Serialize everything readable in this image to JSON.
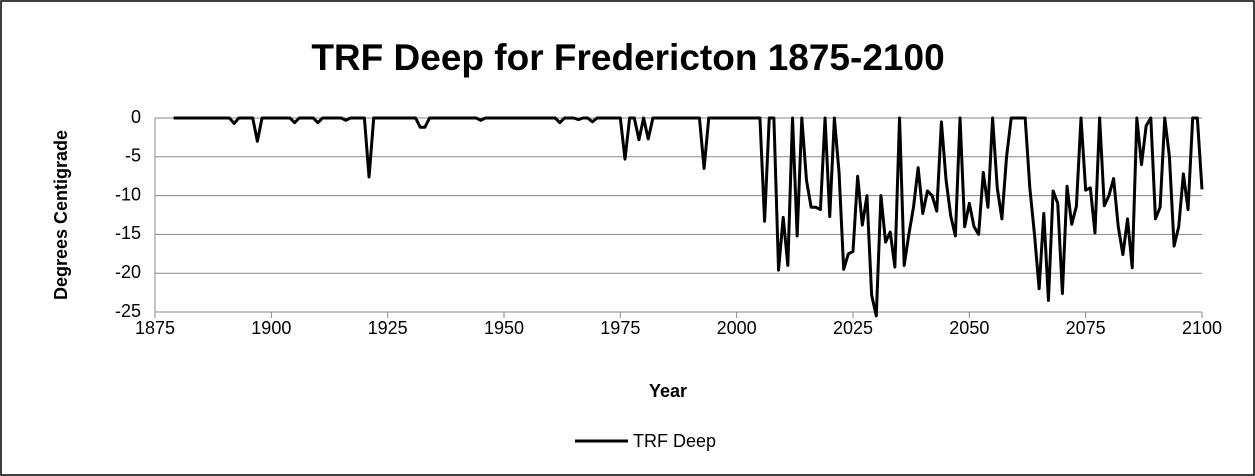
{
  "chart_data": {
    "type": "line",
    "title": "TRF Deep for Fredericton 1875-2100",
    "xlabel": "Year",
    "ylabel": "Degrees Centigrade",
    "xlim": [
      1875,
      2100
    ],
    "xticks": [
      1875,
      1900,
      1925,
      1950,
      1975,
      2000,
      2025,
      2050,
      2075,
      2100
    ],
    "ylim": [
      -25,
      0
    ],
    "yticks": [
      0,
      -5,
      -10,
      -15,
      -20,
      -25
    ],
    "grid": true,
    "legend": "bottom",
    "x": [
      1879,
      1880,
      1881,
      1882,
      1883,
      1884,
      1885,
      1886,
      1887,
      1888,
      1889,
      1890,
      1891,
      1892,
      1893,
      1894,
      1895,
      1896,
      1897,
      1898,
      1899,
      1900,
      1901,
      1902,
      1903,
      1904,
      1905,
      1906,
      1907,
      1908,
      1909,
      1910,
      1911,
      1912,
      1913,
      1914,
      1915,
      1916,
      1917,
      1918,
      1919,
      1920,
      1921,
      1922,
      1923,
      1924,
      1925,
      1926,
      1927,
      1928,
      1929,
      1930,
      1931,
      1932,
      1933,
      1934,
      1935,
      1936,
      1937,
      1938,
      1939,
      1940,
      1941,
      1942,
      1943,
      1944,
      1945,
      1946,
      1947,
      1948,
      1949,
      1950,
      1951,
      1952,
      1953,
      1954,
      1955,
      1956,
      1957,
      1958,
      1959,
      1960,
      1961,
      1962,
      1963,
      1964,
      1965,
      1966,
      1967,
      1968,
      1969,
      1970,
      1971,
      1972,
      1973,
      1974,
      1975,
      1976,
      1977,
      1978,
      1979,
      1980,
      1981,
      1982,
      1983,
      1984,
      1985,
      1986,
      1987,
      1988,
      1989,
      1990,
      1991,
      1992,
      1993,
      1994,
      1995,
      1996,
      1997,
      1998,
      1999,
      2000,
      2001,
      2002,
      2003,
      2004,
      2005,
      2006,
      2007,
      2008,
      2009,
      2010,
      2011,
      2012,
      2013,
      2014,
      2015,
      2016,
      2017,
      2018,
      2019,
      2020,
      2021,
      2022,
      2023,
      2024,
      2025,
      2026,
      2027,
      2028,
      2029,
      2030,
      2031,
      2032,
      2033,
      2034,
      2035,
      2036,
      2037,
      2038,
      2039,
      2040,
      2041,
      2042,
      2043,
      2044,
      2045,
      2046,
      2047,
      2048,
      2049,
      2050,
      2051,
      2052,
      2053,
      2054,
      2055,
      2056,
      2057,
      2058,
      2059,
      2060,
      2061,
      2062,
      2063,
      2064,
      2065,
      2066,
      2067,
      2068,
      2069,
      2070,
      2071,
      2072,
      2073,
      2074,
      2075,
      2076,
      2077,
      2078,
      2079,
      2080,
      2081,
      2082,
      2083,
      2084,
      2085,
      2086,
      2087,
      2088,
      2089,
      2090,
      2091,
      2092,
      2093,
      2094,
      2095,
      2096,
      2097,
      2098,
      2099,
      2100
    ],
    "series": [
      {
        "name": "TRF Deep",
        "color": "#000000",
        "values": [
          0,
          0,
          0,
          0,
          0,
          0,
          0,
          0,
          0,
          0,
          0,
          0,
          0,
          -0.7,
          0,
          0,
          0,
          0,
          -3,
          0,
          0,
          0,
          0,
          0,
          0,
          0,
          -0.6,
          0,
          0,
          0,
          0,
          -0.6,
          0,
          0,
          0,
          0,
          0,
          -0.3,
          0,
          0,
          0,
          0,
          -7.6,
          0,
          0,
          0,
          0,
          0,
          0,
          0,
          0,
          0,
          0,
          -1.2,
          -1.2,
          0,
          0,
          0,
          0,
          0,
          0,
          0,
          0,
          0,
          0,
          0,
          -0.3,
          0,
          0,
          0,
          0,
          0,
          0,
          0,
          0,
          0,
          0,
          0,
          0,
          0,
          0,
          0,
          0,
          -0.6,
          0,
          0,
          0,
          -0.2,
          0,
          0,
          -0.5,
          0,
          0,
          0,
          0,
          0,
          0,
          -5.3,
          0,
          0,
          -2.8,
          0,
          -2.7,
          0,
          0,
          0,
          0,
          0,
          0,
          0,
          0,
          0,
          0,
          0,
          -6.5,
          0,
          0,
          0,
          0,
          0,
          0,
          0,
          0,
          0,
          0,
          0,
          0,
          -13.3,
          0,
          0,
          -19.6,
          -12.8,
          -19,
          0,
          -15.2,
          0,
          -8,
          -11.5,
          -11.5,
          -11.8,
          0,
          -12.7,
          0,
          -7,
          -19.5,
          -17.5,
          -17.2,
          -7.5,
          -13.8,
          -10,
          -22.8,
          -25.5,
          -10,
          -16,
          -14.7,
          -19.2,
          0,
          -19,
          -15,
          -11.5,
          -6.4,
          -12.3,
          -9.4,
          -10,
          -12,
          -0.5,
          -8,
          -12.6,
          -15.2,
          0,
          -14,
          -11,
          -14,
          -15,
          -7,
          -11.5,
          0,
          -9,
          -13,
          -5,
          0,
          0,
          0,
          0,
          -9,
          -15,
          -22,
          -12.3,
          -23.5,
          -9.4,
          -11,
          -22.6,
          -8.8,
          -13.7,
          -11.4,
          0,
          -9.3,
          -9,
          -14.8,
          0,
          -11.3,
          -10,
          -7.8,
          -14,
          -17.6,
          -13,
          -19.3,
          0,
          -6,
          -1,
          0,
          -13,
          -11.5,
          0,
          -5,
          -16.5,
          -14,
          -7.2,
          -11.8,
          0,
          0,
          -9.2
        ]
      }
    ]
  }
}
